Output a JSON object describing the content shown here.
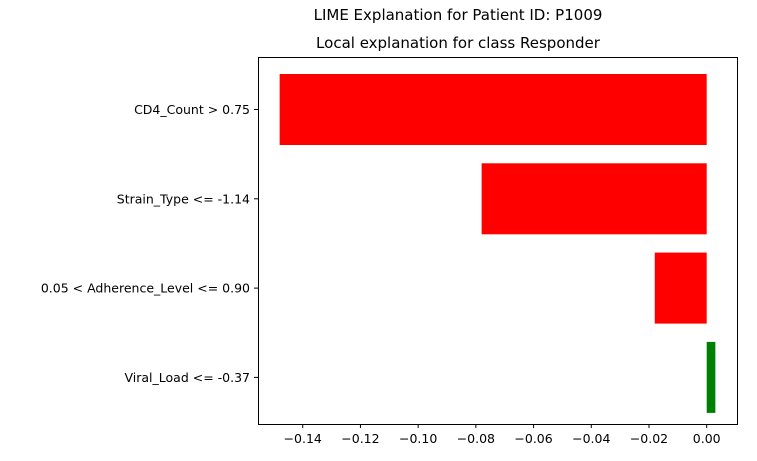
{
  "chart_data": {
    "type": "bar",
    "orientation": "horizontal",
    "suptitle": "LIME Explanation for Patient ID: P1009",
    "title": "Local explanation for class Responder",
    "categories": [
      "CD4_Count > 0.75",
      "Strain_Type <= -1.14",
      "0.05 < Adherence_Level <= 0.90",
      "Viral_Load <= -0.37"
    ],
    "values": [
      -0.148,
      -0.078,
      -0.018,
      0.003
    ],
    "colors": [
      "#ff0000",
      "#ff0000",
      "#ff0000",
      "#008000"
    ],
    "xlim": [
      -0.1555,
      0.0105
    ],
    "xticks": [
      -0.14,
      -0.12,
      -0.1,
      -0.08,
      -0.06,
      -0.04,
      -0.02,
      0.0
    ],
    "xtick_labels": [
      "−0.14",
      "−0.12",
      "−0.10",
      "−0.08",
      "−0.06",
      "−0.04",
      "−0.02",
      "0.00"
    ],
    "xlabel": "",
    "ylabel": "",
    "grid": false,
    "legend": false
  }
}
